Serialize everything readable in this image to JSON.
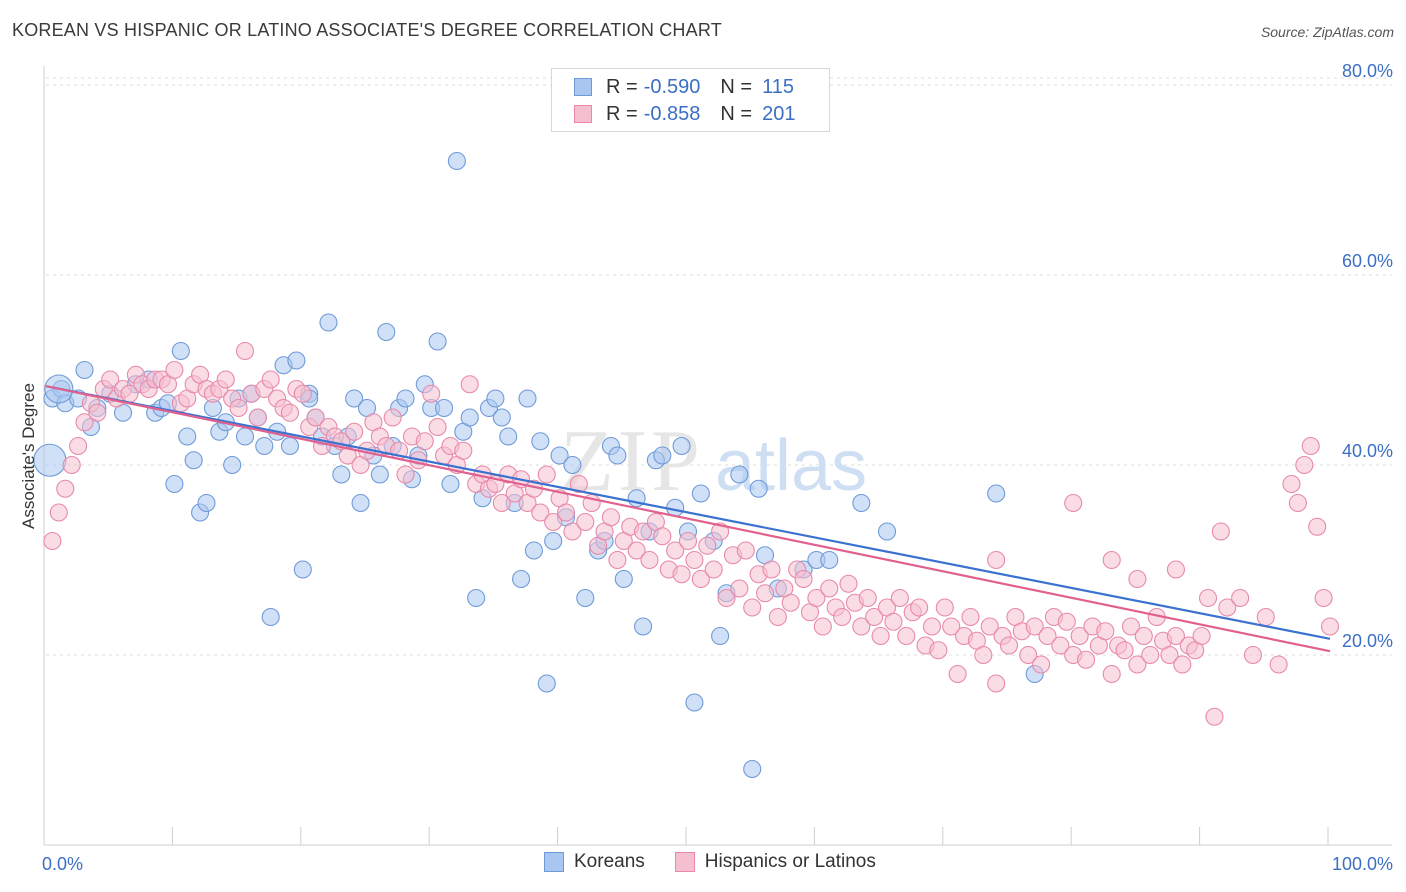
{
  "title": "KOREAN VS HISPANIC OR LATINO ASSOCIATE'S DEGREE CORRELATION CHART",
  "source": "Source: ZipAtlas.com",
  "legend": {
    "r_label": "R =",
    "n_label": "N =",
    "rows": [
      {
        "r": "-0.590",
        "n": "115",
        "color": "#a9c6f0",
        "border": "#6f9ad8"
      },
      {
        "r": "-0.858",
        "n": "201",
        "color": "#f5bfd0",
        "border": "#e889aa"
      }
    ]
  },
  "bottom_legend": [
    {
      "label": "Koreans",
      "color": "#a9c6f0",
      "border": "#6f9ad8"
    },
    {
      "label": "Hispanics or Latinos",
      "color": "#f5bfd0",
      "border": "#e889aa"
    }
  ],
  "chart_data": {
    "type": "scatter",
    "title": "KOREAN VS HISPANIC OR LATINO ASSOCIATE'S DEGREE CORRELATION CHART",
    "xlabel": "",
    "ylabel": "Associate's Degree",
    "xlim": [
      0,
      100
    ],
    "ylim": [
      0,
      82
    ],
    "x_tick_labels": [
      "0.0%",
      "100.0%"
    ],
    "y_ticks": [
      20,
      40,
      60,
      80
    ],
    "y_tick_labels": [
      "20.0%",
      "40.0%",
      "60.0%",
      "80.0%"
    ],
    "grid": true,
    "legend_position": "top-center",
    "watermark": "ZIPatlas",
    "series": [
      {
        "name": "Koreans",
        "color": "#6f9ad8",
        "fill": "#a9c6f0",
        "trend": {
          "x": [
            0,
            100
          ],
          "y": [
            48.3,
            21.7
          ]
        },
        "points": [
          [
            0.5,
            47
          ],
          [
            1.2,
            48
          ],
          [
            1.5,
            46.5
          ],
          [
            2.5,
            47
          ],
          [
            3,
            50
          ],
          [
            3.5,
            44
          ],
          [
            4,
            46
          ],
          [
            5,
            47.5
          ],
          [
            6,
            45.5
          ],
          [
            7,
            48.5
          ],
          [
            8,
            49
          ],
          [
            8.5,
            45.5
          ],
          [
            9,
            46
          ],
          [
            9.5,
            46.5
          ],
          [
            10,
            38
          ],
          [
            10.5,
            52
          ],
          [
            11,
            43
          ],
          [
            11.5,
            40.5
          ],
          [
            12,
            35
          ],
          [
            12.5,
            36
          ],
          [
            13,
            46
          ],
          [
            13.5,
            43.5
          ],
          [
            14,
            44.5
          ],
          [
            14.5,
            40
          ],
          [
            15,
            47
          ],
          [
            15.5,
            43
          ],
          [
            16,
            47.5
          ],
          [
            16.5,
            45
          ],
          [
            17,
            42
          ],
          [
            17.5,
            24
          ],
          [
            18,
            43.5
          ],
          [
            18.5,
            50.5
          ],
          [
            19,
            42
          ],
          [
            19.5,
            51
          ],
          [
            20,
            29
          ],
          [
            20.5,
            47.5
          ],
          [
            21,
            45
          ],
          [
            21.5,
            43
          ],
          [
            22,
            55
          ],
          [
            22.5,
            42
          ],
          [
            23,
            39
          ],
          [
            23.5,
            43
          ],
          [
            24,
            47
          ],
          [
            24.5,
            36
          ],
          [
            25,
            46
          ],
          [
            25.5,
            41
          ],
          [
            26,
            39
          ],
          [
            26.5,
            54
          ],
          [
            27,
            42
          ],
          [
            27.5,
            46
          ],
          [
            28,
            47
          ],
          [
            28.5,
            38.5
          ],
          [
            29,
            41
          ],
          [
            29.5,
            48.5
          ],
          [
            30,
            46
          ],
          [
            30.5,
            53
          ],
          [
            31,
            46
          ],
          [
            31.5,
            38
          ],
          [
            32,
            72
          ],
          [
            32.5,
            43.5
          ],
          [
            33,
            45
          ],
          [
            33.5,
            26
          ],
          [
            34,
            36.5
          ],
          [
            34.5,
            46
          ],
          [
            35,
            47
          ],
          [
            35.5,
            45
          ],
          [
            36,
            43
          ],
          [
            36.5,
            36
          ],
          [
            37,
            28
          ],
          [
            37.5,
            47
          ],
          [
            38,
            31
          ],
          [
            38.5,
            42.5
          ],
          [
            39,
            17
          ],
          [
            39.5,
            32
          ],
          [
            40,
            41
          ],
          [
            40.5,
            34.5
          ],
          [
            41,
            40
          ],
          [
            42,
            26
          ],
          [
            43,
            31
          ],
          [
            43.5,
            32
          ],
          [
            44,
            42
          ],
          [
            44.5,
            41
          ],
          [
            45,
            28
          ],
          [
            46,
            36.5
          ],
          [
            46.5,
            23
          ],
          [
            47,
            33
          ],
          [
            47.5,
            40.5
          ],
          [
            48,
            41
          ],
          [
            49,
            35.5
          ],
          [
            49.5,
            42
          ],
          [
            50,
            33
          ],
          [
            50.5,
            15
          ],
          [
            51,
            37
          ],
          [
            52,
            32
          ],
          [
            52.5,
            22
          ],
          [
            53,
            26.5
          ],
          [
            54,
            39
          ],
          [
            55,
            8
          ],
          [
            55.5,
            37.5
          ],
          [
            56,
            30.5
          ],
          [
            57,
            27
          ],
          [
            59,
            29
          ],
          [
            60,
            30
          ],
          [
            61,
            30
          ],
          [
            63.5,
            36
          ],
          [
            65.5,
            33
          ],
          [
            74,
            37
          ],
          [
            77,
            18
          ],
          [
            20.5,
            47
          ]
        ],
        "big_points": [
          [
            1,
            48,
            14
          ],
          [
            0.3,
            40.5,
            16
          ]
        ]
      },
      {
        "name": "Hispanics or Latinos",
        "color": "#e889aa",
        "fill": "#f5bfd0",
        "trend": {
          "x": [
            0,
            100
          ],
          "y": [
            48.3,
            20.4
          ]
        },
        "points": [
          [
            0.5,
            32
          ],
          [
            1,
            35
          ],
          [
            1.5,
            37.5
          ],
          [
            2,
            40
          ],
          [
            2.5,
            42
          ],
          [
            3,
            44.5
          ],
          [
            3.5,
            46.5
          ],
          [
            4,
            45.5
          ],
          [
            4.5,
            48
          ],
          [
            5,
            49
          ],
          [
            5.5,
            47
          ],
          [
            6,
            48
          ],
          [
            6.5,
            47.5
          ],
          [
            7,
            49.5
          ],
          [
            7.5,
            48.5
          ],
          [
            8,
            48
          ],
          [
            8.5,
            49
          ],
          [
            9,
            49
          ],
          [
            9.5,
            48.5
          ],
          [
            10,
            50
          ],
          [
            10.5,
            46.5
          ],
          [
            11,
            47
          ],
          [
            11.5,
            48.5
          ],
          [
            12,
            49.5
          ],
          [
            12.5,
            48
          ],
          [
            13,
            47.5
          ],
          [
            13.5,
            48
          ],
          [
            14,
            49
          ],
          [
            14.5,
            47
          ],
          [
            15,
            46
          ],
          [
            15.5,
            52
          ],
          [
            16,
            47.5
          ],
          [
            16.5,
            45
          ],
          [
            17,
            48
          ],
          [
            17.5,
            49
          ],
          [
            18,
            47
          ],
          [
            18.5,
            46
          ],
          [
            19,
            45.5
          ],
          [
            19.5,
            48
          ],
          [
            20,
            47.5
          ],
          [
            20.5,
            44
          ],
          [
            21,
            45
          ],
          [
            21.5,
            42
          ],
          [
            22,
            44
          ],
          [
            22.5,
            43
          ],
          [
            23,
            42.5
          ],
          [
            23.5,
            41
          ],
          [
            24,
            43.5
          ],
          [
            24.5,
            40
          ],
          [
            25,
            41.5
          ],
          [
            25.5,
            44.5
          ],
          [
            26,
            43
          ],
          [
            26.5,
            42
          ],
          [
            27,
            45
          ],
          [
            27.5,
            41.5
          ],
          [
            28,
            39
          ],
          [
            28.5,
            43
          ],
          [
            29,
            40.5
          ],
          [
            29.5,
            42.5
          ],
          [
            30,
            47.5
          ],
          [
            30.5,
            44
          ],
          [
            31,
            41
          ],
          [
            31.5,
            42
          ],
          [
            32,
            40
          ],
          [
            32.5,
            41.5
          ],
          [
            33,
            48.5
          ],
          [
            33.5,
            38
          ],
          [
            34,
            39
          ],
          [
            34.5,
            37.5
          ],
          [
            35,
            38
          ],
          [
            35.5,
            36
          ],
          [
            36,
            39
          ],
          [
            36.5,
            37
          ],
          [
            37,
            38.5
          ],
          [
            37.5,
            36
          ],
          [
            38,
            37.5
          ],
          [
            38.5,
            35
          ],
          [
            39,
            39
          ],
          [
            39.5,
            34
          ],
          [
            40,
            36.5
          ],
          [
            40.5,
            35
          ],
          [
            41,
            33
          ],
          [
            41.5,
            38
          ],
          [
            42,
            34
          ],
          [
            42.5,
            36
          ],
          [
            43,
            31.5
          ],
          [
            43.5,
            33
          ],
          [
            44,
            34.5
          ],
          [
            44.5,
            30
          ],
          [
            45,
            32
          ],
          [
            45.5,
            33.5
          ],
          [
            46,
            31
          ],
          [
            46.5,
            33
          ],
          [
            47,
            30
          ],
          [
            47.5,
            34
          ],
          [
            48,
            32.5
          ],
          [
            48.5,
            29
          ],
          [
            49,
            31
          ],
          [
            49.5,
            28.5
          ],
          [
            50,
            32
          ],
          [
            50.5,
            30
          ],
          [
            51,
            28
          ],
          [
            51.5,
            31.5
          ],
          [
            52,
            29
          ],
          [
            52.5,
            33
          ],
          [
            53,
            26
          ],
          [
            53.5,
            30.5
          ],
          [
            54,
            27
          ],
          [
            54.5,
            31
          ],
          [
            55,
            25
          ],
          [
            55.5,
            28.5
          ],
          [
            56,
            26.5
          ],
          [
            56.5,
            29
          ],
          [
            57,
            24
          ],
          [
            57.5,
            27
          ],
          [
            58,
            25.5
          ],
          [
            58.5,
            29
          ],
          [
            59,
            28
          ],
          [
            59.5,
            24.5
          ],
          [
            60,
            26
          ],
          [
            60.5,
            23
          ],
          [
            61,
            27
          ],
          [
            61.5,
            25
          ],
          [
            62,
            24
          ],
          [
            62.5,
            27.5
          ],
          [
            63,
            25.5
          ],
          [
            63.5,
            23
          ],
          [
            64,
            26
          ],
          [
            64.5,
            24
          ],
          [
            65,
            22
          ],
          [
            65.5,
            25
          ],
          [
            66,
            23.5
          ],
          [
            66.5,
            26
          ],
          [
            67,
            22
          ],
          [
            67.5,
            24.5
          ],
          [
            68,
            25
          ],
          [
            68.5,
            21
          ],
          [
            69,
            23
          ],
          [
            69.5,
            20.5
          ],
          [
            70,
            25
          ],
          [
            70.5,
            23
          ],
          [
            71,
            18
          ],
          [
            71.5,
            22
          ],
          [
            72,
            24
          ],
          [
            72.5,
            21.5
          ],
          [
            73,
            20
          ],
          [
            73.5,
            23
          ],
          [
            74,
            17
          ],
          [
            74.5,
            22
          ],
          [
            75,
            21
          ],
          [
            75.5,
            24
          ],
          [
            76,
            22.5
          ],
          [
            76.5,
            20
          ],
          [
            77,
            23
          ],
          [
            77.5,
            19
          ],
          [
            78,
            22
          ],
          [
            78.5,
            24
          ],
          [
            79,
            21
          ],
          [
            79.5,
            23.5
          ],
          [
            80,
            20
          ],
          [
            80.5,
            22
          ],
          [
            81,
            19.5
          ],
          [
            81.5,
            23
          ],
          [
            82,
            21
          ],
          [
            82.5,
            22.5
          ],
          [
            83,
            18
          ],
          [
            83.5,
            21
          ],
          [
            84,
            20.5
          ],
          [
            84.5,
            23
          ],
          [
            85,
            19
          ],
          [
            85.5,
            22
          ],
          [
            86,
            20
          ],
          [
            86.5,
            24
          ],
          [
            87,
            21.5
          ],
          [
            87.5,
            20
          ],
          [
            88,
            22
          ],
          [
            88.5,
            19
          ],
          [
            89,
            21
          ],
          [
            89.5,
            20.5
          ],
          [
            90,
            22
          ],
          [
            90.5,
            26
          ],
          [
            91,
            13.5
          ],
          [
            91.5,
            33
          ],
          [
            92,
            25
          ],
          [
            93,
            26
          ],
          [
            94,
            20
          ],
          [
            95,
            24
          ],
          [
            96,
            19
          ],
          [
            97,
            38
          ],
          [
            97.5,
            36
          ],
          [
            98,
            40
          ],
          [
            98.5,
            42
          ],
          [
            99,
            33.5
          ],
          [
            99.5,
            26
          ],
          [
            100,
            23
          ],
          [
            88,
            29
          ],
          [
            85,
            28
          ],
          [
            83,
            30
          ],
          [
            80,
            36
          ],
          [
            74,
            30
          ]
        ]
      }
    ]
  }
}
